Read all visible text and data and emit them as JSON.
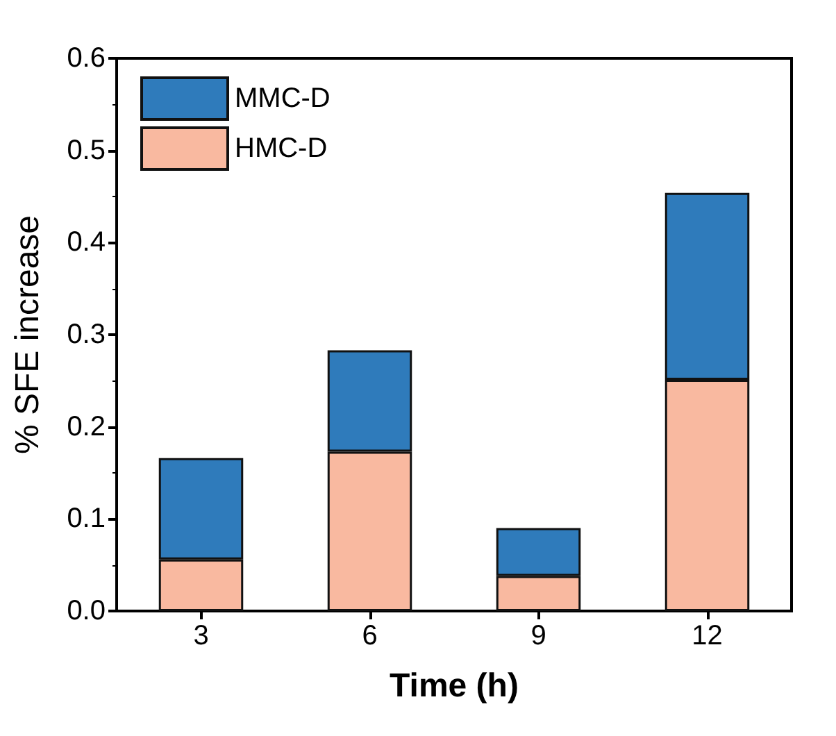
{
  "chart_data": {
    "type": "bar",
    "stacked": true,
    "xlabel": "Time (h)",
    "ylabel": "% SFE increase",
    "categories": [
      "3",
      "6",
      "9",
      "12"
    ],
    "series": [
      {
        "name": "HMC-D",
        "color": "#f9b9a0",
        "values": [
          0.056,
          0.173,
          0.038,
          0.251
        ]
      },
      {
        "name": "MMC-D",
        "color": "#2f7bbb",
        "values": [
          0.11,
          0.11,
          0.052,
          0.203
        ]
      }
    ],
    "ylim": [
      0,
      0.6
    ],
    "yticks": [
      {
        "value": 0,
        "label": "0.0"
      },
      0.1,
      0.2,
      0.3,
      0.4,
      0.5,
      0.6
    ],
    "legend": "top left",
    "grid": false
  }
}
